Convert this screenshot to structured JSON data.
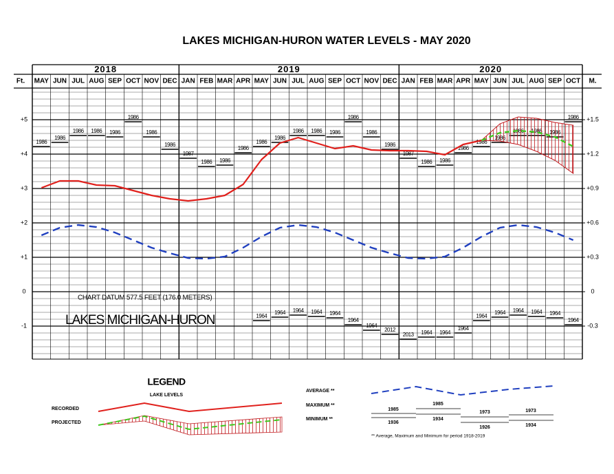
{
  "chart_data": {
    "type": "line",
    "title": "LAKES MICHIGAN-HURON WATER LEVELS - MAY 2020",
    "y_axis_label": "Ft.",
    "y2_axis_label": "M.",
    "datum_note": "CHART DATUM  577.5 FEET (176.0 METERS)",
    "lake_name": "LAKES MICHIGAN-HURON",
    "years": [
      "2018",
      "2019",
      "2020"
    ],
    "categories": [
      "MAY",
      "JUN",
      "JUL",
      "AUG",
      "SEP",
      "OCT",
      "NOV",
      "DEC",
      "JAN",
      "FEB",
      "MAR",
      "APR",
      "MAY",
      "JUN",
      "JUL",
      "AUG",
      "SEP",
      "OCT",
      "NOV",
      "DEC",
      "JAN",
      "FEB",
      "MAR",
      "APR",
      "MAY",
      "JUN",
      "JUL",
      "AUG",
      "SEP",
      "OCT"
    ],
    "ylim": [
      -1.96,
      5.92
    ],
    "yticks": [
      {
        "value": 5,
        "label": "+5"
      },
      {
        "value": 4,
        "label": "+4"
      },
      {
        "value": 3,
        "label": "+3"
      },
      {
        "value": 2,
        "label": "+2"
      },
      {
        "value": 1,
        "label": "+1"
      },
      0,
      -1
    ],
    "y2lim": [
      -0.597408,
      1.804416
    ],
    "y2ticks": [
      {
        "value": 1.524,
        "label": "+1.5"
      },
      {
        "value": 1.2192,
        "label": "+1.2"
      },
      {
        "value": 0.9144,
        "label": "+0.9"
      },
      {
        "value": 0.6096,
        "label": "+0.6"
      },
      {
        "value": 0.3048,
        "label": "+0.3"
      },
      0,
      {
        "value": -0.3048,
        "label": "-0.3"
      }
    ],
    "grid": true,
    "series": [
      {
        "name": "RECORDED",
        "color": "#e0201c",
        "style": "solid",
        "values": [
          3.02,
          3.22,
          3.22,
          3.1,
          3.08,
          2.94,
          2.8,
          2.7,
          2.64,
          2.7,
          2.8,
          3.12,
          3.84,
          4.32,
          4.48,
          4.32,
          4.16,
          4.24,
          4.12,
          4.1,
          4.1,
          4.08,
          3.98,
          4.28,
          4.4,
          null,
          null,
          null,
          null,
          null
        ]
      },
      {
        "name": "PROJECTED",
        "color": "#3ec81e",
        "range_color": "#c0171b",
        "style": "dashed",
        "values": [
          null,
          null,
          null,
          null,
          null,
          null,
          null,
          null,
          null,
          null,
          null,
          null,
          null,
          null,
          null,
          null,
          null,
          null,
          null,
          null,
          null,
          null,
          null,
          null,
          4.4,
          4.62,
          4.68,
          4.64,
          4.5,
          4.22
        ],
        "high": [
          null,
          null,
          null,
          null,
          null,
          null,
          null,
          null,
          null,
          null,
          null,
          null,
          null,
          null,
          null,
          null,
          null,
          null,
          null,
          null,
          null,
          null,
          null,
          null,
          4.4,
          4.88,
          5.08,
          5.04,
          4.92,
          4.84
        ],
        "low": [
          null,
          null,
          null,
          null,
          null,
          null,
          null,
          null,
          null,
          null,
          null,
          null,
          null,
          null,
          null,
          null,
          null,
          null,
          null,
          null,
          null,
          null,
          null,
          null,
          4.4,
          4.38,
          4.28,
          4.08,
          3.82,
          3.44
        ]
      },
      {
        "name": "AVERAGE **",
        "color": "#1f3fbf",
        "style": "dashed",
        "values": [
          1.64,
          1.86,
          1.94,
          1.88,
          1.72,
          1.5,
          1.28,
          1.12,
          0.98,
          0.96,
          1.02,
          1.28,
          1.6,
          1.86,
          1.94,
          1.88,
          1.72,
          1.5,
          1.28,
          1.12,
          0.98,
          0.96,
          1.02,
          1.28,
          1.6,
          1.86,
          1.94,
          1.88,
          1.72,
          1.5
        ]
      },
      {
        "name": "MAXIMUM **",
        "color": "#000000",
        "style": "record",
        "values": [
          4.22,
          4.34,
          4.54,
          4.54,
          4.5,
          4.94,
          4.5,
          4.14,
          3.88,
          3.64,
          3.68,
          4.04,
          4.22,
          4.34,
          4.54,
          4.54,
          4.5,
          4.94,
          4.5,
          4.14,
          3.88,
          3.64,
          3.68,
          4.04,
          4.22,
          4.34,
          4.54,
          4.54,
          4.5,
          4.94
        ],
        "years": [
          "1986",
          "1986",
          "1986",
          "1986",
          "1986",
          "1986",
          "1986",
          "1986",
          "1987",
          "1986",
          "1986",
          "1986",
          "1986",
          "1986",
          "1986",
          "1986",
          "1986",
          "1986",
          "1986",
          "1986",
          "1987",
          "1986",
          "1986",
          "1986",
          "1986",
          "1986",
          "1986",
          "1986",
          "1986",
          "1986"
        ]
      },
      {
        "name": "MINIMUM **",
        "color": "#000000",
        "style": "record",
        "values": [
          null,
          null,
          null,
          null,
          null,
          null,
          null,
          null,
          null,
          null,
          null,
          null,
          -0.84,
          -0.74,
          -0.68,
          -0.72,
          -0.76,
          -0.96,
          -1.12,
          -1.24,
          -1.38,
          -1.32,
          -1.32,
          -1.2,
          -0.84,
          -0.74,
          -0.68,
          -0.72,
          -0.76,
          -0.96
        ],
        "years": [
          null,
          null,
          null,
          null,
          null,
          null,
          null,
          null,
          null,
          null,
          null,
          null,
          "1964",
          "1964",
          "1964",
          "1964",
          "1964",
          "1964",
          "1964",
          "2012",
          "2013",
          "1964",
          "1964",
          "1964",
          "1964",
          "1964",
          "1964",
          "1964",
          "1964",
          "1964"
        ]
      }
    ],
    "legend": {
      "title": "LEGEND",
      "subtitle": "LAKE LEVELS",
      "example_max_years": [
        "1985",
        "1985",
        "1973",
        "1973"
      ],
      "example_min_years": [
        "1936",
        "1934",
        "1926",
        "1934"
      ],
      "footnote": "** Average, Maximum and Minimum for period 1918-2019"
    }
  }
}
